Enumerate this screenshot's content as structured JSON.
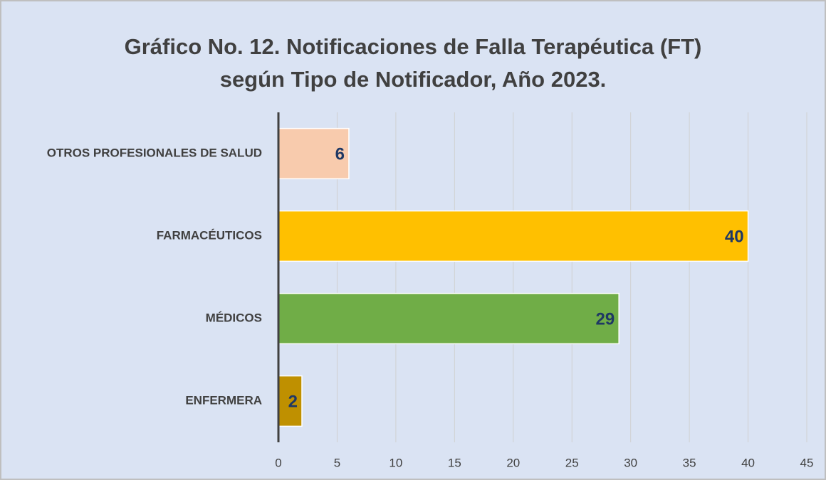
{
  "chart_data": {
    "type": "hbar",
    "title": [
      "Gráfico No. 12. Notificaciones de Falla Terapéutica (FT)",
      "según Tipo de Notificador, Año 2023."
    ],
    "categories": [
      "OTROS PROFESIONALES DE SALUD",
      "FARMACÉUTICOS",
      "MÉDICOS",
      "ENFERMERA"
    ],
    "values": [
      6,
      40,
      29,
      2
    ],
    "colors": [
      "#f8cbad",
      "#ffc000",
      "#70ad47",
      "#bf9000"
    ],
    "xlim": [
      0,
      45
    ],
    "xticks": [
      0,
      5,
      10,
      15,
      20,
      25,
      30,
      35,
      40,
      45
    ],
    "grid": true
  }
}
